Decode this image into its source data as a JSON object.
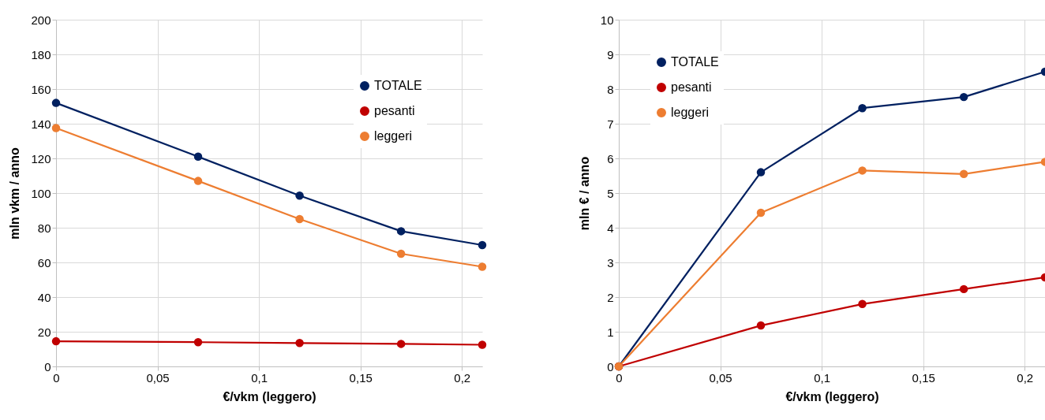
{
  "chart_data": [
    {
      "type": "line",
      "x": [
        0,
        0.07,
        0.12,
        0.17,
        0.21
      ],
      "xlabel": "€/vkm (leggero)",
      "ylabel": "mln vkm / anno",
      "xlim": [
        0,
        0.21
      ],
      "xticks": [
        0,
        {
          "value": 0.05,
          "label": "0,05"
        },
        {
          "value": 0.1,
          "label": "0,1"
        },
        {
          "value": 0.15,
          "label": "0,15"
        },
        {
          "value": 0.2,
          "label": "0,2"
        }
      ],
      "ylim": [
        0,
        200
      ],
      "yticks": [
        0,
        20,
        40,
        60,
        80,
        100,
        120,
        140,
        160,
        180,
        200
      ],
      "series": [
        {
          "name": "TOTALE",
          "color": "#002060",
          "values": [
            152,
            121,
            98.5,
            78,
            70
          ]
        },
        {
          "name": "pesanti",
          "color": "#c00000",
          "values": [
            14.5,
            14,
            13.5,
            13,
            12.5
          ]
        },
        {
          "name": "leggeri",
          "color": "#ed7d31",
          "values": [
            137.5,
            107,
            85,
            65,
            57.5
          ]
        }
      ],
      "grid": true,
      "legend": "top right",
      "marker": "circle",
      "line_style": "solid"
    },
    {
      "type": "line",
      "x": [
        0,
        0.07,
        0.12,
        0.17,
        0.21
      ],
      "xlabel": "€/vkm (leggero)",
      "ylabel": "mln € / anno",
      "xlim": [
        0,
        0.21
      ],
      "xticks": [
        0,
        {
          "value": 0.05,
          "label": "0,05"
        },
        {
          "value": 0.1,
          "label": "0,1"
        },
        {
          "value": 0.15,
          "label": "0,15"
        },
        {
          "value": 0.2,
          "label": "0,2"
        }
      ],
      "ylim": [
        0,
        10
      ],
      "yticks": [
        0,
        1,
        2,
        3,
        4,
        5,
        6,
        7,
        8,
        9,
        10
      ],
      "series": [
        {
          "name": "TOTALE",
          "color": "#002060",
          "values": [
            0,
            5.6,
            7.45,
            7.77,
            8.5
          ]
        },
        {
          "name": "pesanti",
          "color": "#c00000",
          "values": [
            0,
            1.18,
            1.8,
            2.23,
            2.57
          ]
        },
        {
          "name": "leggeri",
          "color": "#ed7d31",
          "values": [
            0,
            4.43,
            5.65,
            5.55,
            5.9
          ]
        }
      ],
      "grid": true,
      "legend": "top left",
      "marker": "circle",
      "line_style": "solid"
    }
  ]
}
